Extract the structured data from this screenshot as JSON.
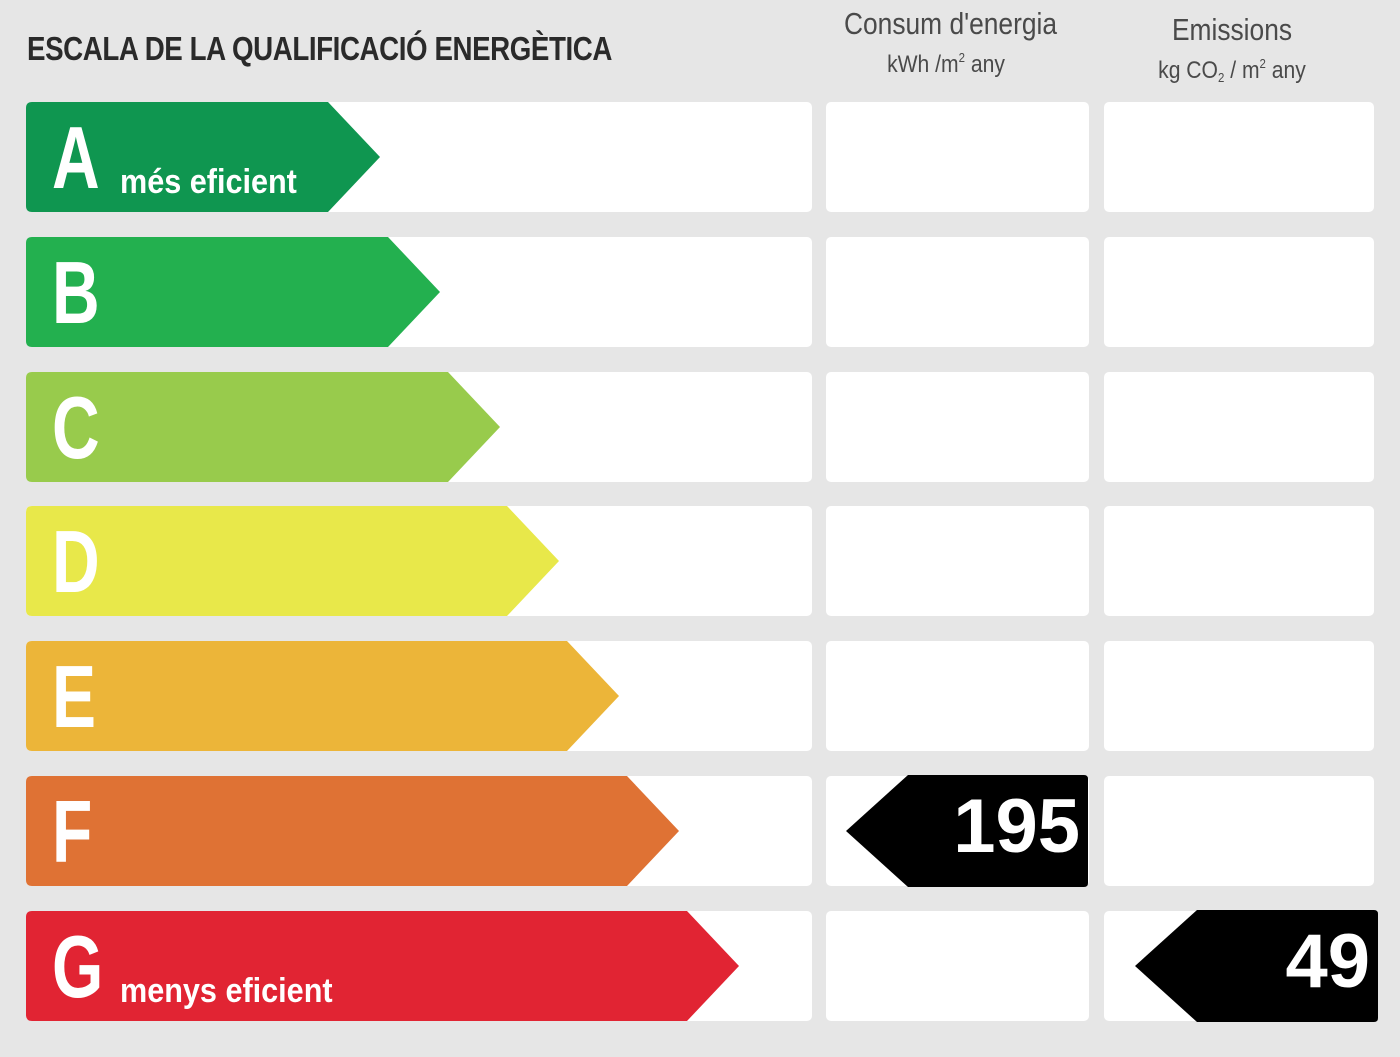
{
  "title": "ESCALA DE LA QUALIFICACIÓ ENERGÈTICA",
  "columns": {
    "consum": {
      "title": "Consum d'energia",
      "unit_pre": "kWh /m",
      "unit_sup": "2",
      "unit_post": " any"
    },
    "emissions": {
      "title": "Emissions",
      "unit_pre": "kg CO",
      "unit_sub": "2",
      "unit_mid": " / m",
      "unit_sup": "2",
      "unit_post": " any"
    }
  },
  "ratings": [
    {
      "letter": "A",
      "label": "més eficient",
      "color": "#0f9650"
    },
    {
      "letter": "B",
      "label": "",
      "color": "#23b04f"
    },
    {
      "letter": "C",
      "label": "",
      "color": "#98cb4c"
    },
    {
      "letter": "D",
      "label": "",
      "color": "#e8e84a"
    },
    {
      "letter": "E",
      "label": "",
      "color": "#ecb539"
    },
    {
      "letter": "F",
      "label": "",
      "color": "#df7234"
    },
    {
      "letter": "G",
      "label": "menys eficient",
      "color": "#e12433"
    }
  ],
  "consum_value": {
    "rating": "F",
    "value": "195"
  },
  "emissions_value": {
    "rating": "G",
    "value": "49"
  }
}
